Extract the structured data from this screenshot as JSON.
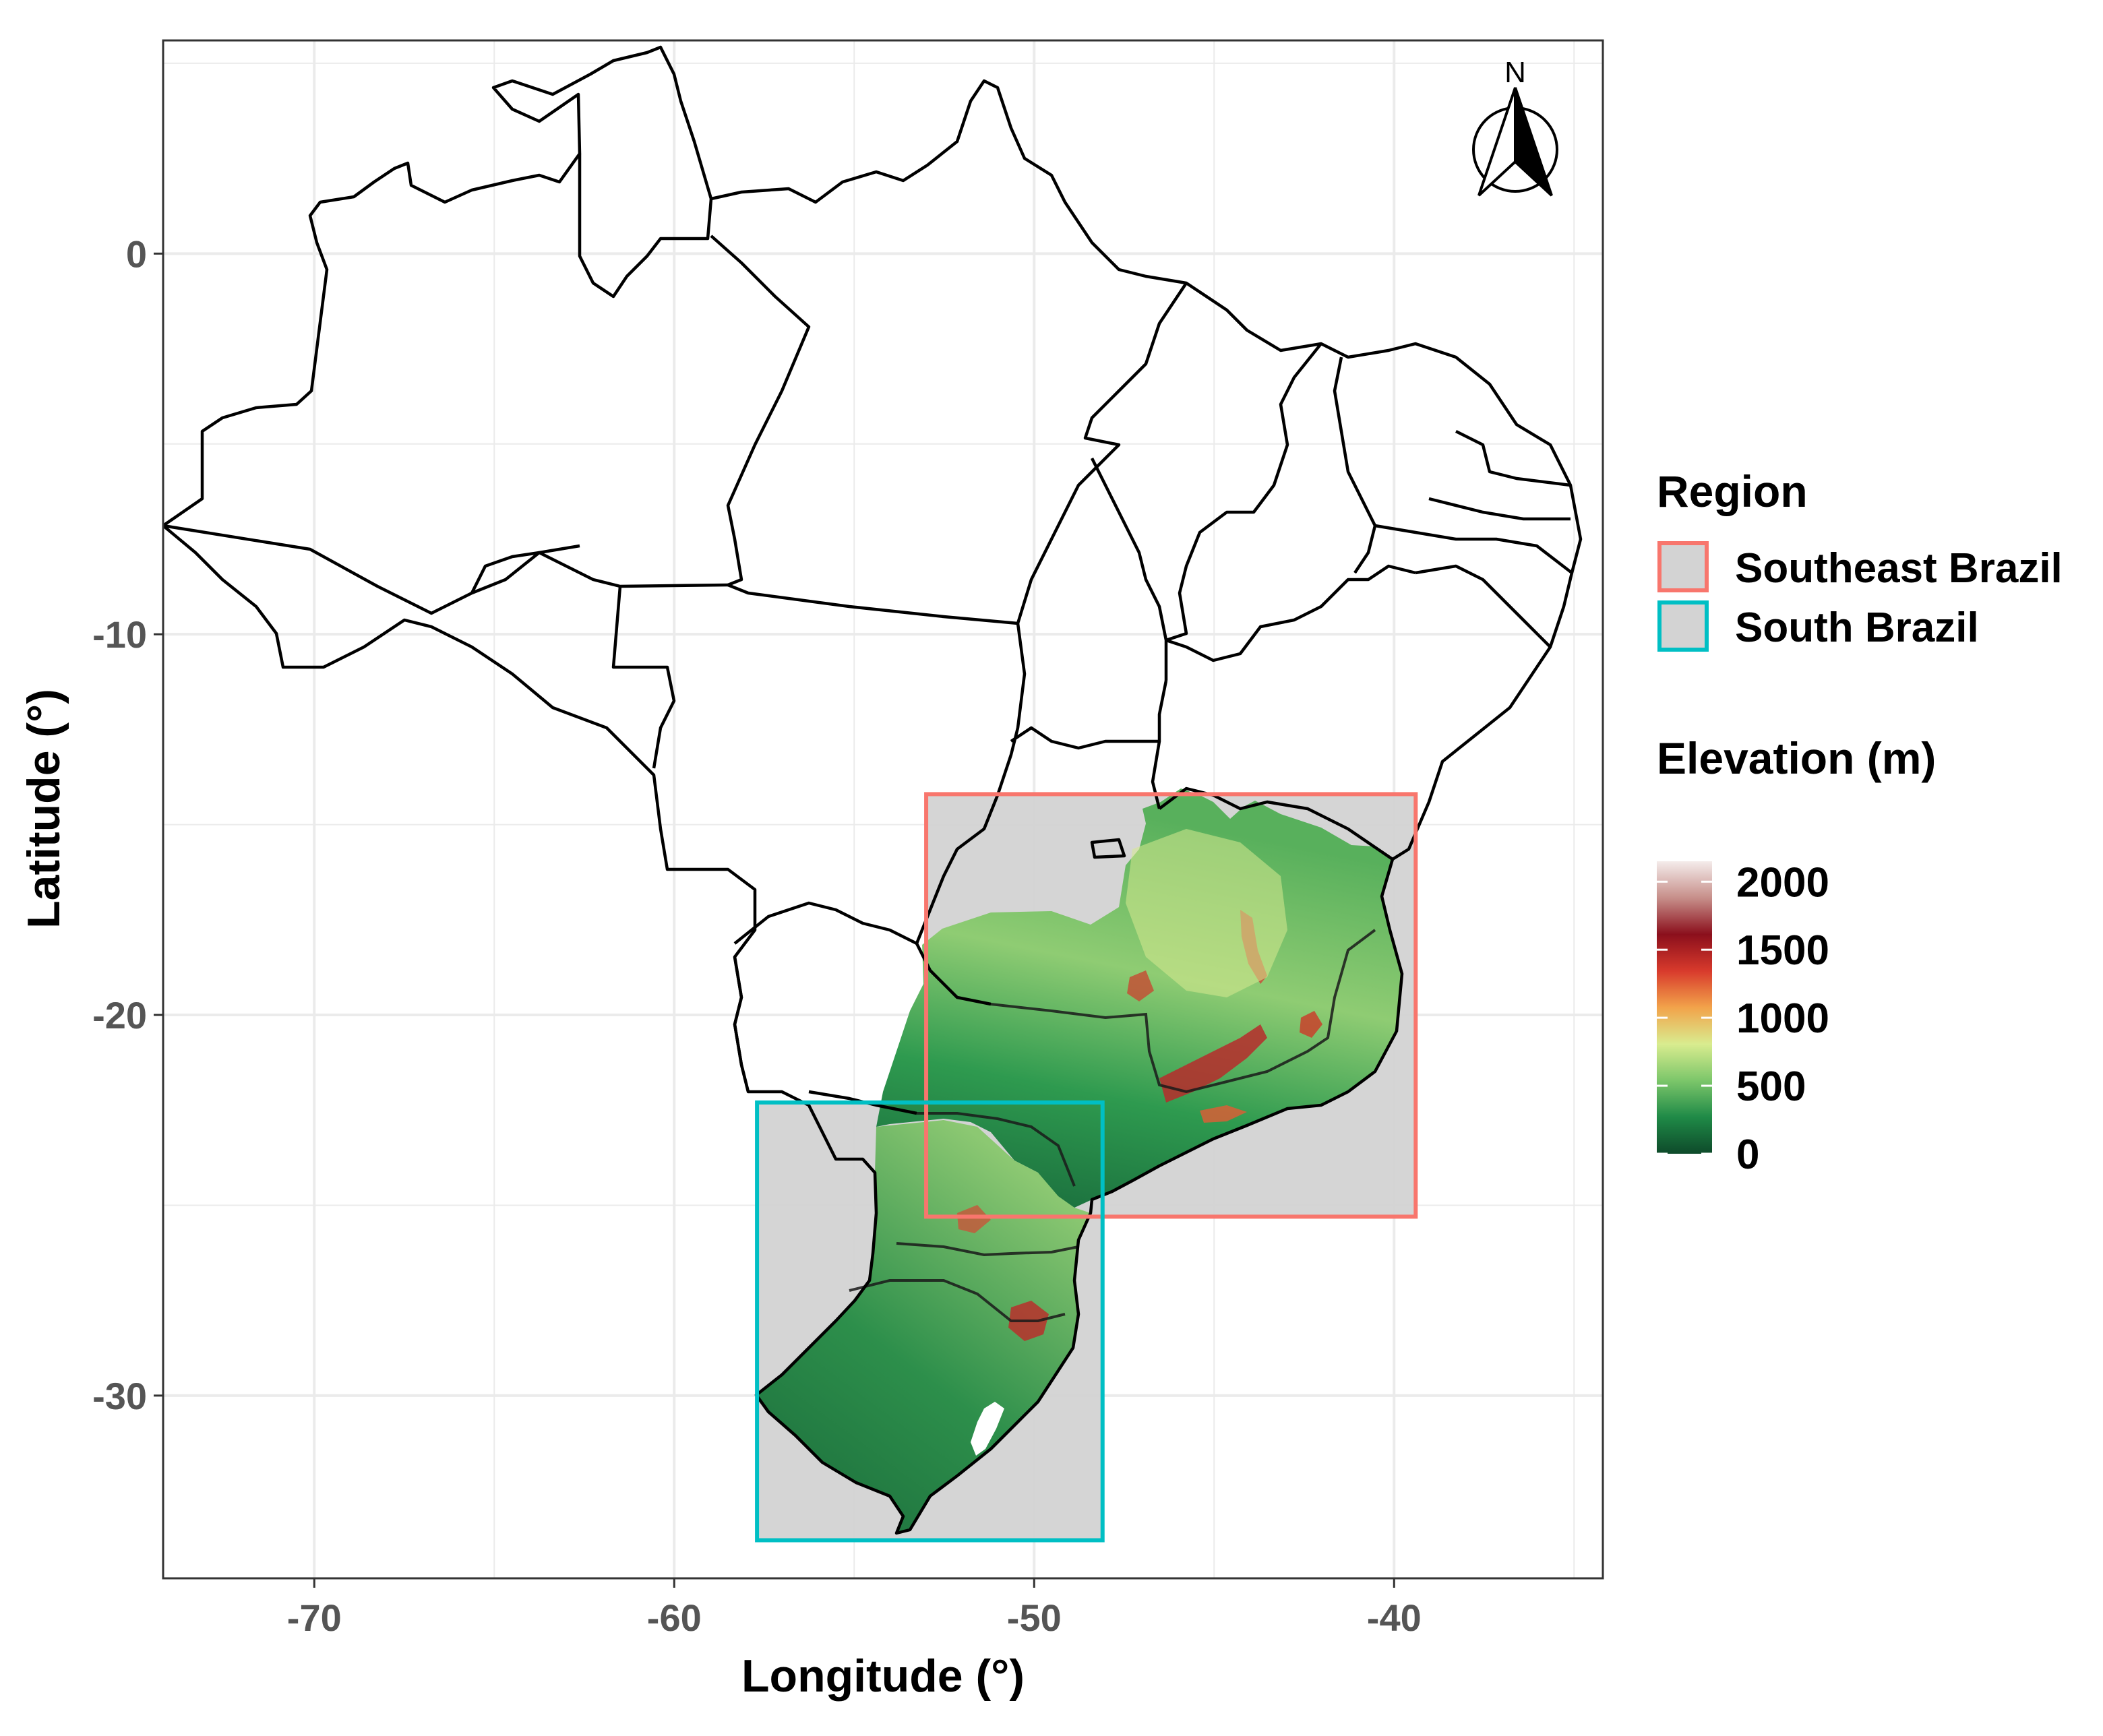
{
  "chart_data": {
    "type": "map",
    "title": "",
    "xlabel": "Longitude (°)",
    "ylabel": "Latitude (°)",
    "xlim": [
      -74.2,
      -34.2
    ],
    "ylim": [
      -34.8,
      5.6
    ],
    "x_ticks": [
      -70,
      -60,
      -50,
      -40
    ],
    "x_tick_labels": [
      "-70",
      "-60",
      "-50",
      "-40"
    ],
    "y_ticks": [
      0,
      -10,
      -20,
      -30
    ],
    "y_tick_labels": [
      "0",
      "-10",
      "-20",
      "-30"
    ],
    "grid": true,
    "north_arrow": {
      "label": "N",
      "placement": "top-right"
    },
    "regions": [
      {
        "name": "Southeast Brazil",
        "color": "#F8766D",
        "lon_range": [
          -53.0,
          -39.4
        ],
        "lat_range": [
          -25.3,
          -14.2
        ]
      },
      {
        "name": "South Brazil",
        "color": "#00BFC4",
        "lon_range": [
          -57.7,
          -48.1
        ],
        "lat_range": [
          -33.8,
          -22.3
        ]
      }
    ],
    "elevation_colorbar": {
      "title": "Elevation (m)",
      "breaks": [
        0,
        500,
        1000,
        1500,
        2000
      ],
      "labels": [
        "0",
        "500",
        "1000",
        "1500",
        "2000"
      ],
      "range": [
        0,
        2150
      ],
      "colors": [
        "#0e4a2a",
        "#1f8a47",
        "#7cc66a",
        "#d9ec8f",
        "#f2a34a",
        "#d83a2c",
        "#8b0f1c",
        "#c78f8a",
        "#f4eceb"
      ]
    }
  },
  "legend": {
    "region_title": "Region",
    "region_items": [
      "Southeast Brazil",
      "South Brazil"
    ]
  },
  "colors": {
    "panel_border": "#333333",
    "grid": "#ebebeb",
    "box_fill": "#d3d3d3",
    "state_line": "#000000"
  }
}
